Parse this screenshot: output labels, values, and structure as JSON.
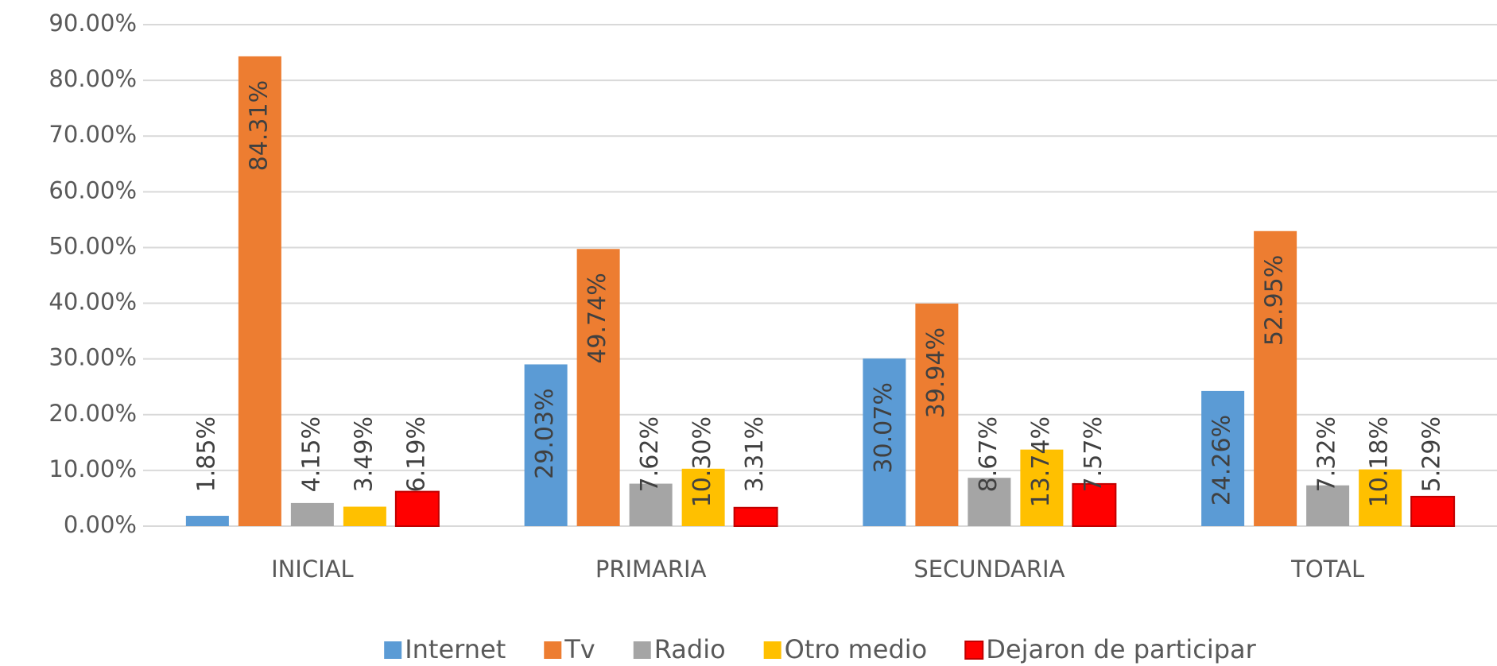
{
  "chart_data": {
    "type": "bar",
    "categories": [
      "INICIAL",
      "PRIMARIA",
      "SECUNDARIA",
      "TOTAL"
    ],
    "series": [
      {
        "name": "Internet",
        "color": "#5b9bd5",
        "values": [
          1.85,
          29.03,
          30.07,
          24.26
        ],
        "value_labels": [
          "1.85%",
          "29.03%",
          "30.07%",
          "24.26%"
        ]
      },
      {
        "name": "Tv",
        "color": "#ed7d31",
        "values": [
          84.31,
          49.74,
          39.94,
          52.95
        ],
        "value_labels": [
          "84.31%",
          "49.74%",
          "39.94%",
          "52.95%"
        ]
      },
      {
        "name": "Radio",
        "color": "#a5a5a5",
        "values": [
          4.15,
          7.62,
          8.67,
          7.32
        ],
        "value_labels": [
          "4.15%",
          "7.62%",
          "8.67%",
          "7.32%"
        ]
      },
      {
        "name": "Otro medio",
        "color": "#ffc000",
        "values": [
          3.49,
          10.3,
          13.74,
          10.18
        ],
        "value_labels": [
          "3.49%",
          "10.30%",
          "13.74%",
          "10.18%"
        ]
      },
      {
        "name": "Dejaron de participar",
        "color": "#ff0000",
        "values": [
          6.19,
          3.31,
          7.57,
          5.29
        ],
        "value_labels": [
          "6.19%",
          "3.31%",
          "7.57%",
          "5.29%"
        ]
      }
    ],
    "ylim": [
      0,
      90
    ],
    "yticks": [
      {
        "value": 0,
        "label": "0.00%"
      },
      {
        "value": 10,
        "label": "10.00%"
      },
      {
        "value": 20,
        "label": "20.00%"
      },
      {
        "value": 30,
        "label": "30.00%"
      },
      {
        "value": 40,
        "label": "40.00%"
      },
      {
        "value": 50,
        "label": "50.00%"
      },
      {
        "value": 60,
        "label": "60.00%"
      },
      {
        "value": 70,
        "label": "70.00%"
      },
      {
        "value": 80,
        "label": "80.00%"
      },
      {
        "value": 90,
        "label": "90.00%"
      }
    ],
    "grid": true,
    "legend": "bottom"
  }
}
